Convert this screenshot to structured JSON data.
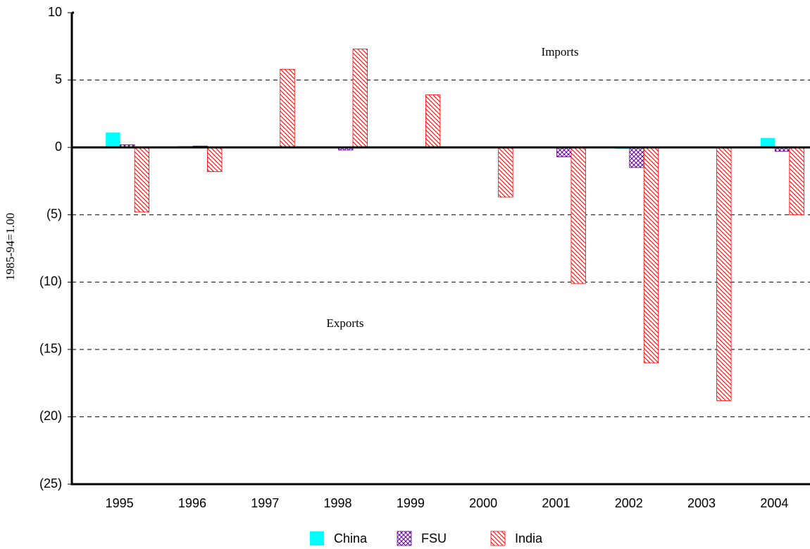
{
  "chart_data": {
    "type": "bar",
    "y_label": "1985-94=1.00",
    "annotations": [
      "Imports",
      "Exports"
    ],
    "categories": [
      "1995",
      "1996",
      "1997",
      "1998",
      "1999",
      "2000",
      "2001",
      "2002",
      "2003",
      "2004"
    ],
    "series": [
      {
        "name": "China",
        "color": "#00ffff",
        "pattern": "solid",
        "values": [
          1.1,
          0.1,
          0,
          0,
          0,
          0,
          0,
          -0.1,
          0.05,
          0.7
        ]
      },
      {
        "name": "FSU",
        "color": "#660099",
        "pattern": "crosshatch",
        "values": [
          0.2,
          0.1,
          0,
          -0.2,
          0,
          0,
          -0.7,
          -1.5,
          0,
          -0.3
        ]
      },
      {
        "name": "India",
        "color": "#ff0000",
        "pattern": "diagonal",
        "values": [
          -4.8,
          -1.8,
          5.8,
          7.3,
          3.9,
          -3.7,
          -10.1,
          -16,
          -18.8,
          -5
        ]
      }
    ],
    "ylim": [
      -25,
      10
    ],
    "yticks": [
      10,
      5,
      0,
      {
        "value": -5,
        "label": "(5)"
      },
      {
        "value": -10,
        "label": "(10)"
      },
      {
        "value": -15,
        "label": "(15)"
      },
      {
        "value": -20,
        "label": "(20)"
      },
      {
        "value": -25,
        "label": "(25)"
      }
    ],
    "grid": true,
    "legend": "bottom"
  }
}
